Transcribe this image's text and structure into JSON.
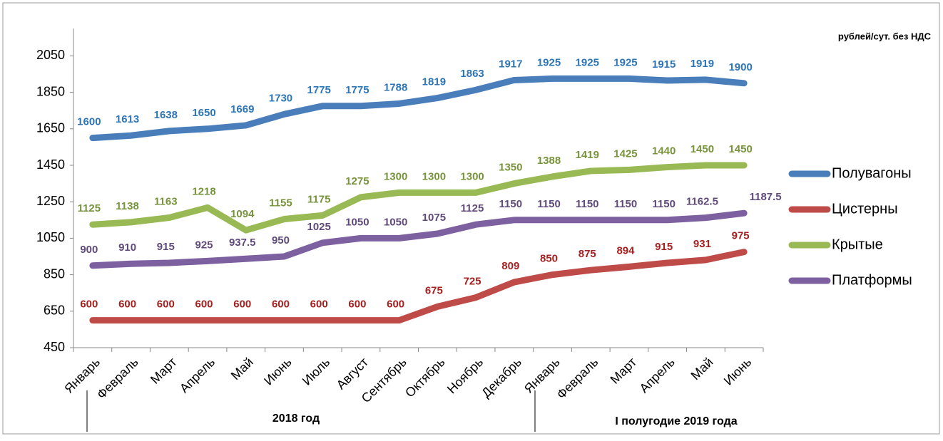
{
  "chart_data": {
    "type": "line",
    "unit_label": "рублей/сут. без НДС",
    "period_labels": [
      "2018 год",
      "I полугодие 2019 года"
    ],
    "categories": [
      "Январь",
      "Февраль",
      "Март",
      "Апрель",
      "Май",
      "Июнь",
      "Июль",
      "Август",
      "Сентябрь",
      "Октябрь",
      "Ноябрь",
      "Декабрь",
      "Январь",
      "Февраль",
      "Март",
      "Апрель",
      "Май",
      "Июнь"
    ],
    "series": [
      {
        "name": "Полувагоны",
        "color": "#4a7ebb",
        "label_color": "#2e75b6",
        "values": [
          1600,
          1613,
          1638,
          1650,
          1669,
          1730,
          1775,
          1775,
          1788,
          1819,
          1863,
          1917,
          1925,
          1925,
          1925,
          1915,
          1919,
          1900
        ]
      },
      {
        "name": "Цистерны",
        "color": "#be4b48",
        "label_color": "#a52020",
        "values": [
          600,
          600,
          600,
          600,
          600,
          600,
          600,
          600,
          600,
          675,
          725,
          809,
          850,
          875,
          894,
          915,
          931,
          975
        ]
      },
      {
        "name": "Крытые",
        "color": "#98b954",
        "label_color": "#77933c",
        "values": [
          1125,
          1138,
          1163,
          1218,
          1094,
          1155,
          1175,
          1275,
          1300,
          1300,
          1300,
          1350,
          1388,
          1419,
          1425,
          1440,
          1450,
          1450
        ]
      },
      {
        "name": "Платформы",
        "color": "#7d60a0",
        "label_color": "#604a7b",
        "values": [
          900,
          910,
          915,
          925,
          937.5,
          950,
          1025,
          1050,
          1050,
          1075,
          1125,
          1150,
          1150,
          1150,
          1150,
          1150,
          1162.5,
          1187.5
        ]
      }
    ],
    "ylim": [
      450,
      2200
    ],
    "yticks": [
      450,
      650,
      850,
      1050,
      1250,
      1450,
      1650,
      1850,
      2050
    ],
    "legend": "right"
  }
}
